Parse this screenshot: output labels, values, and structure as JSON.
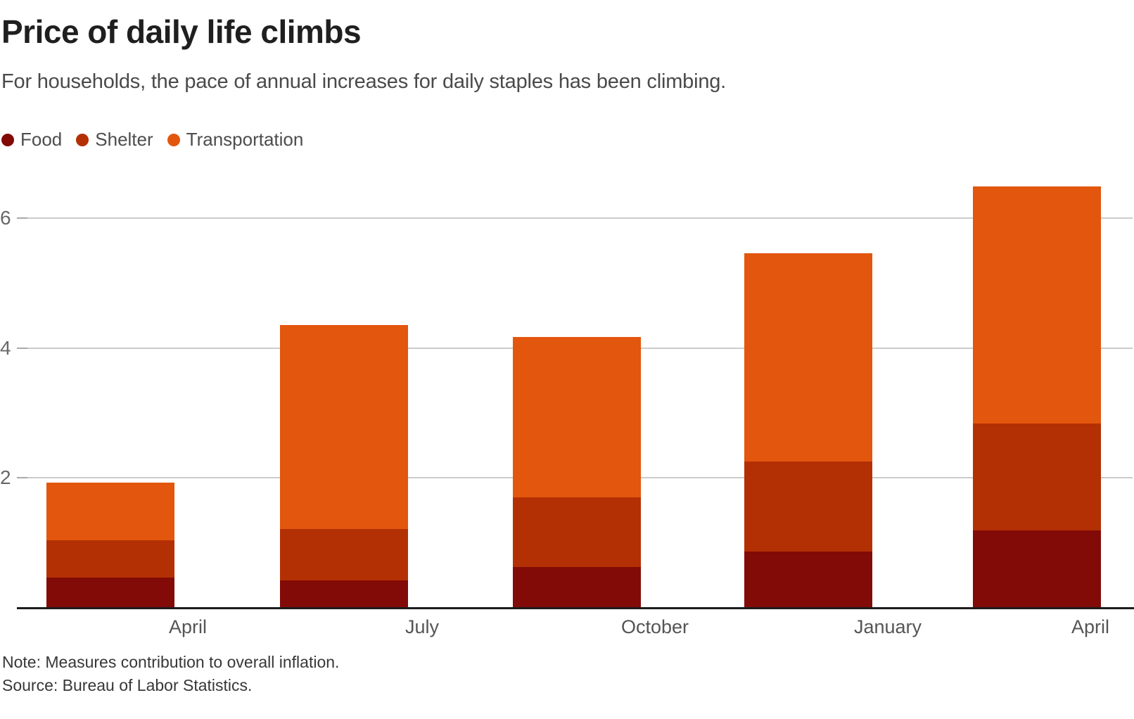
{
  "title": "Price of daily life climbs",
  "subtitle": "For households, the pace of annual increases for daily staples has been climbing.",
  "legend": [
    {
      "label": "Food",
      "color": "#820B07"
    },
    {
      "label": "Shelter",
      "color": "#B33005"
    },
    {
      "label": "Transportation",
      "color": "#E3560D"
    }
  ],
  "note": "Note: Measures contribution to overall inflation.",
  "source": "Source: Bureau of Labor Statistics.",
  "colors": {
    "food": "#820B07",
    "shelter": "#B33005",
    "transportation": "#E3560D",
    "gridline": "#cbcbcb",
    "axis_line": "#1d1d1d",
    "title_text": "#1f1f1f",
    "subtitle_text": "#4a4a4a",
    "tick_text": "#696969"
  },
  "chart_data": {
    "type": "bar",
    "stacked": true,
    "title": "Price of daily life climbs",
    "subtitle": "For households, the pace of annual increases for daily staples has been climbing.",
    "categories": [
      "April",
      "July",
      "October",
      "January",
      "April"
    ],
    "series": [
      {
        "name": "Food",
        "color": "#820B07",
        "values": [
          0.47,
          0.42,
          0.63,
          0.87,
          1.19
        ]
      },
      {
        "name": "Shelter",
        "color": "#B33005",
        "values": [
          0.57,
          0.79,
          1.07,
          1.38,
          1.65
        ]
      },
      {
        "name": "Transportation",
        "color": "#E3560D",
        "values": [
          0.89,
          3.14,
          2.47,
          3.21,
          3.65
        ]
      }
    ],
    "stack_totals": [
      1.93,
      4.35,
      4.17,
      5.46,
      6.49
    ],
    "xlabel": "",
    "ylabel": "",
    "y_ticks": [
      2,
      4,
      6
    ],
    "ylim": [
      0,
      6.6
    ],
    "grid": "horizontal",
    "legend_position": "top-left",
    "note": "Note: Measures contribution to overall inflation.",
    "source": "Source: Bureau of Labor Statistics."
  }
}
